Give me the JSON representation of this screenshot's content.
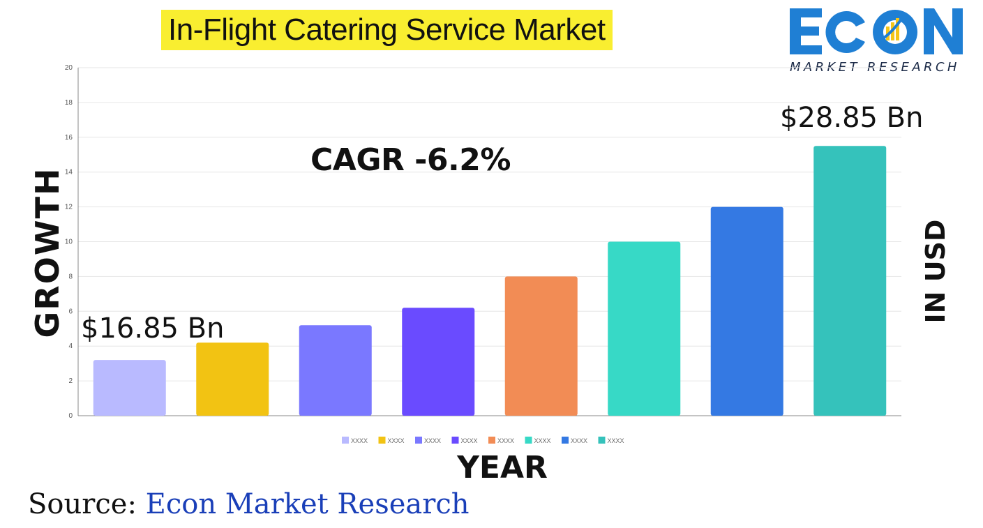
{
  "title": "In-Flight Catering Service Market",
  "logo": {
    "brand": "ECON",
    "tagline": "MARKET RESEARCH",
    "colors": {
      "blue": "#1f7fd4",
      "accent": "#f5c518",
      "navy": "#1b2a47"
    }
  },
  "y_axis_left_label": "GROWTH",
  "y_axis_right_label": "IN USD",
  "x_axis_label": "YEAR",
  "cagr_text": "CAGR -6.2%",
  "annotations": {
    "start_value": "$16.85 Bn",
    "end_value": "$28.85 Bn"
  },
  "source": {
    "prefix": "Source: ",
    "name": "Econ Market Research"
  },
  "chart_data": {
    "type": "bar",
    "ylim": [
      0,
      20
    ],
    "yticks": [
      0,
      2,
      4,
      6,
      8,
      10,
      12,
      14,
      16,
      18,
      20
    ],
    "grid": true,
    "legend_position": "bottom",
    "categories": [
      "XXXX",
      "XXXX",
      "XXXX",
      "XXXX",
      "XXXX",
      "XXXX",
      "XXXX",
      "XXXX"
    ],
    "values": [
      3.2,
      4.2,
      5.2,
      6.2,
      8.0,
      10.0,
      12.0,
      15.5
    ],
    "colors": [
      "#b9baff",
      "#f2c313",
      "#7a78ff",
      "#6a4bff",
      "#f28c55",
      "#37d9c6",
      "#3479e3",
      "#35c2bb"
    ]
  }
}
